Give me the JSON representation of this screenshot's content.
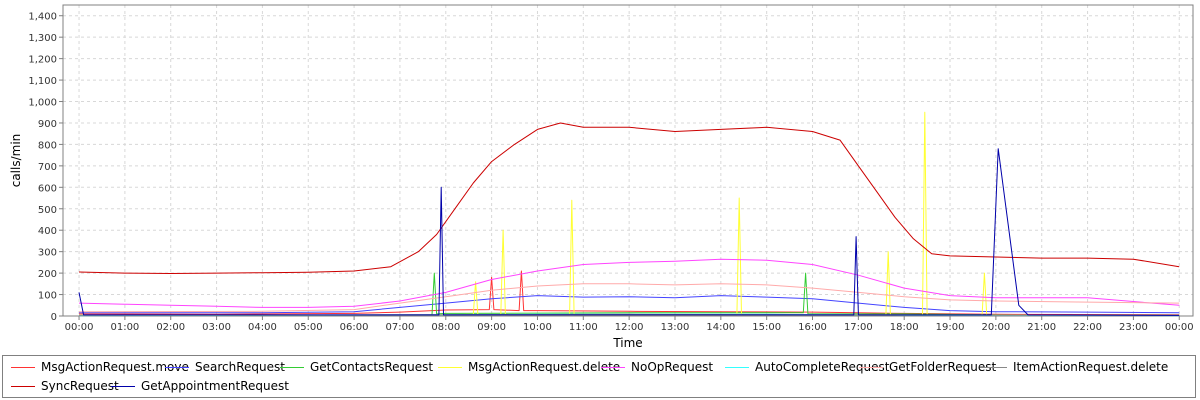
{
  "chart_data": {
    "type": "line",
    "xlabel": "Time",
    "ylabel": "calls/min",
    "ylim": [
      0,
      1450
    ],
    "yticks": [
      0,
      100,
      200,
      300,
      400,
      500,
      600,
      700,
      800,
      900,
      1000,
      1100,
      1200,
      1300,
      1400
    ],
    "ytick_labels": [
      "0",
      "100",
      "200",
      "300",
      "400",
      "500",
      "600",
      "700",
      "800",
      "900",
      "1,000",
      "1,100",
      "1,200",
      "1,300",
      "1,400"
    ],
    "x_range_hours": [
      -0.35,
      24.3
    ],
    "xtick_labels": [
      "00:00",
      "01:00",
      "02:00",
      "03:00",
      "04:00",
      "05:00",
      "06:00",
      "07:00",
      "08:00",
      "09:00",
      "10:00",
      "11:00",
      "12:00",
      "13:00",
      "14:00",
      "15:00",
      "16:00",
      "17:00",
      "18:00",
      "19:00",
      "20:00",
      "21:00",
      "22:00",
      "23:00",
      "00:00"
    ],
    "grid": true,
    "legend_position": "bottom",
    "series": [
      {
        "name": "MsgActionRequest.move",
        "color": "#ff3333",
        "points": [
          [
            0,
            10
          ],
          [
            3,
            8
          ],
          [
            6,
            12
          ],
          [
            7,
            18
          ],
          [
            8,
            28
          ],
          [
            8.95,
            30
          ],
          [
            9,
            180
          ],
          [
            9.05,
            30
          ],
          [
            9.6,
            25
          ],
          [
            9.65,
            210
          ],
          [
            9.7,
            25
          ],
          [
            10,
            25
          ],
          [
            12,
            22
          ],
          [
            14,
            20
          ],
          [
            16,
            18
          ],
          [
            17,
            15
          ],
          [
            18,
            12
          ],
          [
            20,
            8
          ],
          [
            24,
            6
          ]
        ]
      },
      {
        "name": "SearchRequest",
        "color": "#4444ff",
        "points": [
          [
            0,
            15
          ],
          [
            4,
            15
          ],
          [
            6,
            20
          ],
          [
            7,
            40
          ],
          [
            8,
            60
          ],
          [
            9,
            80
          ],
          [
            10,
            95
          ],
          [
            11,
            88
          ],
          [
            12,
            90
          ],
          [
            13,
            85
          ],
          [
            14,
            95
          ],
          [
            15,
            88
          ],
          [
            16,
            80
          ],
          [
            17,
            60
          ],
          [
            18,
            40
          ],
          [
            19,
            25
          ],
          [
            20,
            20
          ],
          [
            22,
            18
          ],
          [
            24,
            15
          ]
        ]
      },
      {
        "name": "GetContactsRequest",
        "color": "#33cc33",
        "points": [
          [
            0,
            3
          ],
          [
            7,
            5
          ],
          [
            7.7,
            5
          ],
          [
            7.75,
            200
          ],
          [
            7.8,
            10
          ],
          [
            8,
            12
          ],
          [
            12,
            15
          ],
          [
            15,
            15
          ],
          [
            15.8,
            15
          ],
          [
            15.85,
            200
          ],
          [
            15.9,
            10
          ],
          [
            18,
            10
          ],
          [
            20,
            5
          ],
          [
            24,
            3
          ]
        ]
      },
      {
        "name": "MsgActionRequest.delete",
        "color": "#ffff33",
        "points": [
          [
            0,
            3
          ],
          [
            8,
            5
          ],
          [
            8.6,
            8
          ],
          [
            8.65,
            160
          ],
          [
            8.7,
            5
          ],
          [
            9.2,
            5
          ],
          [
            9.25,
            400
          ],
          [
            9.3,
            5
          ],
          [
            10.7,
            5
          ],
          [
            10.75,
            540
          ],
          [
            10.8,
            5
          ],
          [
            14.35,
            5
          ],
          [
            14.4,
            550
          ],
          [
            14.45,
            5
          ],
          [
            17.6,
            5
          ],
          [
            17.65,
            300
          ],
          [
            17.7,
            5
          ],
          [
            18.4,
            5
          ],
          [
            18.45,
            950
          ],
          [
            18.5,
            5
          ],
          [
            19.7,
            5
          ],
          [
            19.75,
            200
          ],
          [
            19.8,
            5
          ],
          [
            24,
            3
          ]
        ]
      },
      {
        "name": "NoOpRequest",
        "color": "#ff44ff",
        "points": [
          [
            0,
            60
          ],
          [
            1,
            55
          ],
          [
            2,
            50
          ],
          [
            3,
            45
          ],
          [
            4,
            40
          ],
          [
            5,
            40
          ],
          [
            6,
            45
          ],
          [
            7,
            70
          ],
          [
            8,
            110
          ],
          [
            9,
            170
          ],
          [
            10,
            210
          ],
          [
            11,
            240
          ],
          [
            12,
            250
          ],
          [
            13,
            255
          ],
          [
            14,
            265
          ],
          [
            15,
            260
          ],
          [
            16,
            240
          ],
          [
            17,
            190
          ],
          [
            18,
            130
          ],
          [
            19,
            95
          ],
          [
            20,
            85
          ],
          [
            22,
            85
          ],
          [
            24,
            50
          ]
        ]
      },
      {
        "name": "AutoCompleteRequest",
        "color": "#33ffff",
        "points": [
          [
            0,
            2
          ],
          [
            8,
            5
          ],
          [
            10,
            8
          ],
          [
            12,
            8
          ],
          [
            15,
            8
          ],
          [
            16,
            6
          ],
          [
            18,
            4
          ],
          [
            24,
            2
          ]
        ]
      },
      {
        "name": "GetFolderRequest",
        "color": "#ffaaaa",
        "points": [
          [
            0,
            20
          ],
          [
            4,
            22
          ],
          [
            6,
            30
          ],
          [
            7,
            60
          ],
          [
            8,
            90
          ],
          [
            9,
            120
          ],
          [
            10,
            140
          ],
          [
            11,
            150
          ],
          [
            12,
            150
          ],
          [
            13,
            145
          ],
          [
            14,
            150
          ],
          [
            15,
            145
          ],
          [
            16,
            130
          ],
          [
            17,
            110
          ],
          [
            18,
            90
          ],
          [
            19,
            75
          ],
          [
            20,
            70
          ],
          [
            22,
            65
          ],
          [
            24,
            60
          ]
        ]
      },
      {
        "name": "ItemActionRequest.delete",
        "color": "#888888",
        "points": [
          [
            0,
            3
          ],
          [
            8,
            6
          ],
          [
            12,
            8
          ],
          [
            16,
            6
          ],
          [
            20,
            4
          ],
          [
            24,
            3
          ]
        ]
      },
      {
        "name": "SyncRequest",
        "color": "#cc0000",
        "points": [
          [
            0,
            205
          ],
          [
            1,
            200
          ],
          [
            2,
            198
          ],
          [
            3,
            200
          ],
          [
            4,
            202
          ],
          [
            5,
            204
          ],
          [
            6,
            210
          ],
          [
            6.8,
            230
          ],
          [
            7.4,
            300
          ],
          [
            7.8,
            380
          ],
          [
            8.2,
            500
          ],
          [
            8.6,
            620
          ],
          [
            9,
            720
          ],
          [
            9.5,
            800
          ],
          [
            10,
            870
          ],
          [
            10.5,
            900
          ],
          [
            11,
            880
          ],
          [
            12,
            880
          ],
          [
            13,
            860
          ],
          [
            14,
            870
          ],
          [
            15,
            880
          ],
          [
            16,
            860
          ],
          [
            16.6,
            820
          ],
          [
            17,
            700
          ],
          [
            17.4,
            580
          ],
          [
            17.8,
            460
          ],
          [
            18.2,
            360
          ],
          [
            18.6,
            290
          ],
          [
            19,
            280
          ],
          [
            20,
            275
          ],
          [
            21,
            270
          ],
          [
            22,
            270
          ],
          [
            23,
            265
          ],
          [
            24,
            230
          ]
        ]
      },
      {
        "name": "GetAppointmentRequest",
        "color": "#0000aa",
        "points": [
          [
            0,
            110
          ],
          [
            0.1,
            5
          ],
          [
            7.85,
            5
          ],
          [
            7.9,
            600
          ],
          [
            7.95,
            5
          ],
          [
            16.9,
            5
          ],
          [
            16.95,
            370
          ],
          [
            17,
            5
          ],
          [
            19.9,
            5
          ],
          [
            20.05,
            780
          ],
          [
            20.5,
            50
          ],
          [
            20.7,
            5
          ],
          [
            24,
            3
          ]
        ]
      }
    ]
  }
}
